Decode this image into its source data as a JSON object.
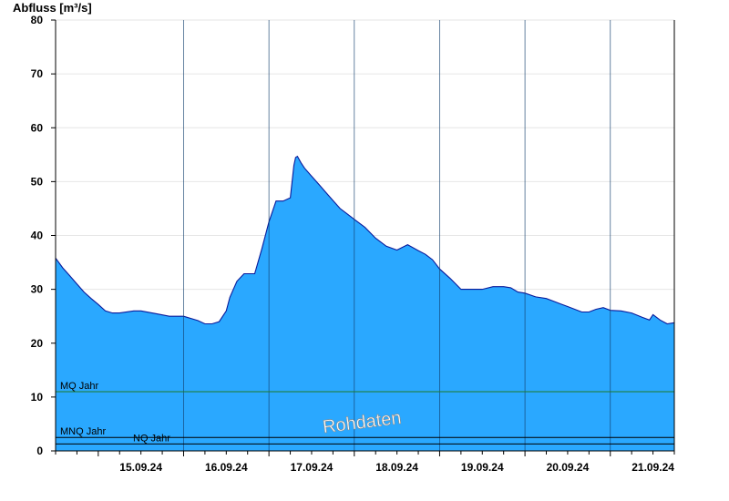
{
  "chart_data": {
    "type": "area",
    "ylabel": "Abfluss [m³/s]",
    "ylim": [
      0,
      80
    ],
    "y_ticks": [
      0,
      10,
      20,
      30,
      40,
      50,
      60,
      70,
      80
    ],
    "grid": true,
    "x_start": "2024-09-14T12:00",
    "x_end": "2024-09-21T18:00",
    "x_tick_labels": [
      "15.09.24",
      "16.09.24",
      "17.09.24",
      "18.09.24",
      "19.09.24",
      "20.09.24",
      "21.09.24"
    ],
    "x_day_starts": [
      "2024-09-15T00:00",
      "2024-09-16T00:00",
      "2024-09-17T00:00",
      "2024-09-18T00:00",
      "2024-09-19T00:00",
      "2024-09-20T00:00",
      "2024-09-21T00:00"
    ],
    "series": [
      {
        "x": [
          "2024-09-14T12:00",
          "2024-09-14T14:00",
          "2024-09-14T16:00",
          "2024-09-14T18:00",
          "2024-09-14T20:00",
          "2024-09-14T22:00",
          "2024-09-15T00:00",
          "2024-09-15T02:00",
          "2024-09-15T04:00",
          "2024-09-15T06:00",
          "2024-09-15T10:00",
          "2024-09-15T12:00",
          "2024-09-15T16:00",
          "2024-09-15T20:00",
          "2024-09-16T00:00",
          "2024-09-16T04:00",
          "2024-09-16T06:00",
          "2024-09-16T08:00",
          "2024-09-16T10:00",
          "2024-09-16T12:00",
          "2024-09-16T13:00",
          "2024-09-16T15:00",
          "2024-09-16T17:00",
          "2024-09-16T20:00",
          "2024-09-16T22:00",
          "2024-09-17T00:00",
          "2024-09-17T02:00",
          "2024-09-17T04:00",
          "2024-09-17T06:00",
          "2024-09-17T07:00",
          "2024-09-17T07:30",
          "2024-09-17T08:00",
          "2024-09-17T09:00",
          "2024-09-17T10:00",
          "2024-09-17T12:00",
          "2024-09-17T14:00",
          "2024-09-17T16:00",
          "2024-09-17T18:00",
          "2024-09-17T20:00",
          "2024-09-17T22:00",
          "2024-09-18T00:00",
          "2024-09-18T03:00",
          "2024-09-18T06:00",
          "2024-09-18T09:00",
          "2024-09-18T12:00",
          "2024-09-18T15:00",
          "2024-09-18T18:00",
          "2024-09-18T20:00",
          "2024-09-18T22:00",
          "2024-09-19T00:00",
          "2024-09-19T03:00",
          "2024-09-19T06:00",
          "2024-09-19T09:00",
          "2024-09-19T12:00",
          "2024-09-19T15:00",
          "2024-09-19T18:00",
          "2024-09-19T20:00",
          "2024-09-19T22:00",
          "2024-09-20T00:00",
          "2024-09-20T03:00",
          "2024-09-20T06:00",
          "2024-09-20T08:00",
          "2024-09-20T10:00",
          "2024-09-20T12:00",
          "2024-09-20T14:00",
          "2024-09-20T16:00",
          "2024-09-20T18:00",
          "2024-09-20T20:00",
          "2024-09-20T22:00",
          "2024-09-21T00:00",
          "2024-09-21T03:00",
          "2024-09-21T06:00",
          "2024-09-21T09:00",
          "2024-09-21T11:00",
          "2024-09-21T12:00",
          "2024-09-21T14:00",
          "2024-09-21T16:00",
          "2024-09-21T18:00"
        ],
        "values": [
          35.8,
          34.0,
          32.5,
          31.0,
          29.5,
          28.3,
          27.2,
          26.0,
          25.6,
          25.6,
          26.0,
          26.0,
          25.5,
          25.0,
          25.0,
          24.2,
          23.6,
          23.6,
          24.0,
          26.0,
          28.5,
          31.5,
          32.9,
          32.9,
          37.5,
          42.5,
          46.4,
          46.4,
          47.0,
          53.0,
          54.5,
          54.7,
          53.5,
          52.5,
          51.0,
          49.5,
          48.0,
          46.5,
          45.0,
          44.0,
          43.0,
          41.5,
          39.5,
          38.0,
          37.3,
          38.3,
          37.2,
          36.5,
          35.5,
          33.8,
          32.0,
          30.0,
          30.0,
          30.0,
          30.5,
          30.5,
          30.3,
          29.5,
          29.3,
          28.6,
          28.3,
          27.8,
          27.3,
          26.8,
          26.3,
          25.8,
          25.8,
          26.3,
          26.6,
          26.1,
          26.0,
          25.6,
          24.8,
          24.3,
          25.3,
          24.3,
          23.6,
          23.8
        ]
      }
    ],
    "reference_lines": [
      {
        "label": "MQ Jahr",
        "value": 11.0
      },
      {
        "label": "MNQ Jahr",
        "value": 2.5
      },
      {
        "label": "NQ Jahr",
        "value": 1.3
      }
    ],
    "watermark": "Rohdaten",
    "colors": {
      "fill": "#2aa8ff",
      "stroke": "#0a1a9a",
      "mq_line": "#1f7a2a",
      "threshold_line": "#000000",
      "grid": "#e6e6e6",
      "axis": "#000000"
    }
  }
}
